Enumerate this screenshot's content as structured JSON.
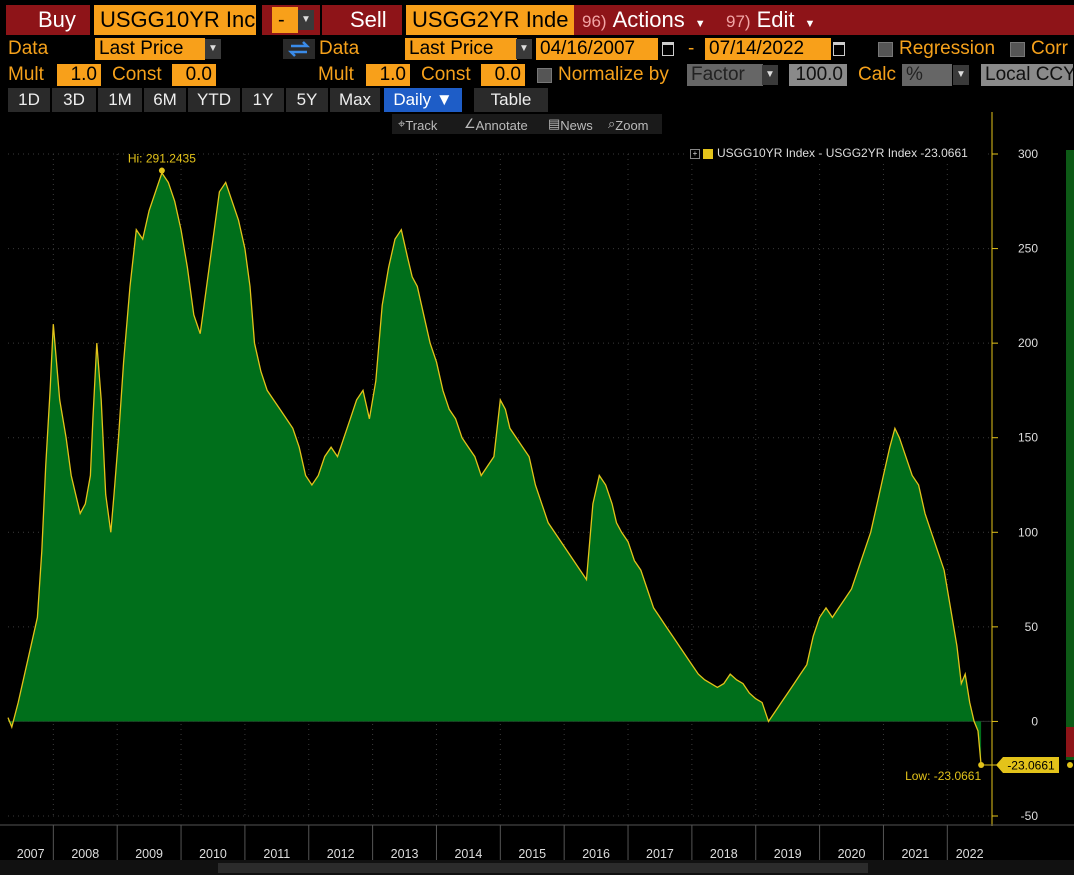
{
  "toolbar": {
    "buy_label": "Buy",
    "buy_ticker": "USGG10YR Inc",
    "op_symbol": "-",
    "sell_label": "Sell",
    "sell_ticker": "USGG2YR Inde",
    "actions_num": "96)",
    "actions_label": "Actions",
    "edit_num": "97)",
    "edit_label": "Edit"
  },
  "row2": {
    "data_label_1": "Data",
    "data_value_1": "Last Price",
    "data_label_2": "Data",
    "data_value_2": "Last Price",
    "start_date": "04/16/2007",
    "date_sep": "-",
    "end_date": "07/14/2022",
    "regression_label": "Regression",
    "corr_label": "Corr"
  },
  "row3": {
    "mult_label_1": "Mult",
    "mult_value_1": "1.0",
    "const_label_1": "Const",
    "const_value_1": "0.0",
    "mult_label_2": "Mult",
    "mult_value_2": "1.0",
    "const_label_2": "Const",
    "const_value_2": "0.0",
    "normalize_label": "Normalize by",
    "normalize_value": "Factor",
    "normalize_amount": "100.0",
    "calc_label": "Calc",
    "calc_value": "%",
    "currency_value": "Local CCY"
  },
  "tabs": [
    "1D",
    "3D",
    "1M",
    "6M",
    "YTD",
    "1Y",
    "5Y",
    "Max",
    "Daily ▼",
    "Table"
  ],
  "chart_tools": {
    "track": "Track",
    "annotate": "Annotate",
    "news": "News",
    "zoom": "Zoom"
  },
  "colors": {
    "fill": "#006f1b",
    "line": "#e3c31a",
    "accent": "#f5a11b",
    "button_red": "#8e1418"
  },
  "chart_data": {
    "type": "area",
    "legend": "USGG10YR Index - USGG2YR Index -23.0661",
    "legend_position": "top-right",
    "hi_label": "Hi: 291.2435",
    "low_label": "Low: -23.0661",
    "last_value_label": "-23.0661",
    "ylim": [
      -50,
      300
    ],
    "yticks": [
      300,
      250,
      200,
      150,
      100,
      50,
      0,
      -50
    ],
    "xlim": [
      2007.29,
      2022.7
    ],
    "xticks": [
      "2007",
      "2008",
      "2009",
      "2010",
      "2011",
      "2012",
      "2013",
      "2014",
      "2015",
      "2016",
      "2017",
      "2018",
      "2019",
      "2020",
      "2021",
      "2022"
    ],
    "x": [
      2007.29,
      2007.35,
      2007.45,
      2007.55,
      2007.65,
      2007.75,
      2007.82,
      2007.88,
      2007.95,
      2008.0,
      2008.1,
      2008.2,
      2008.28,
      2008.35,
      2008.42,
      2008.5,
      2008.58,
      2008.62,
      2008.68,
      2008.75,
      2008.82,
      2008.9,
      2008.95,
      2009.02,
      2009.1,
      2009.2,
      2009.3,
      2009.4,
      2009.5,
      2009.6,
      2009.7,
      2009.8,
      2009.9,
      2010.0,
      2010.1,
      2010.2,
      2010.3,
      2010.4,
      2010.5,
      2010.6,
      2010.7,
      2010.8,
      2010.9,
      2011.0,
      2011.08,
      2011.15,
      2011.25,
      2011.35,
      2011.45,
      2011.55,
      2011.65,
      2011.75,
      2011.85,
      2011.95,
      2012.05,
      2012.15,
      2012.25,
      2012.35,
      2012.45,
      2012.55,
      2012.65,
      2012.75,
      2012.85,
      2012.95,
      2013.05,
      2013.15,
      2013.25,
      2013.35,
      2013.45,
      2013.55,
      2013.62,
      2013.7,
      2013.8,
      2013.9,
      2014.0,
      2014.1,
      2014.2,
      2014.3,
      2014.4,
      2014.5,
      2014.6,
      2014.7,
      2014.8,
      2014.9,
      2015.0,
      2015.08,
      2015.15,
      2015.25,
      2015.35,
      2015.45,
      2015.55,
      2015.65,
      2015.75,
      2015.85,
      2015.95,
      2016.05,
      2016.15,
      2016.25,
      2016.35,
      2016.45,
      2016.55,
      2016.65,
      2016.75,
      2016.82,
      2016.9,
      2017.0,
      2017.1,
      2017.2,
      2017.3,
      2017.4,
      2017.5,
      2017.6,
      2017.7,
      2017.8,
      2017.9,
      2018.0,
      2018.1,
      2018.2,
      2018.3,
      2018.4,
      2018.5,
      2018.6,
      2018.7,
      2018.8,
      2018.9,
      2019.0,
      2019.1,
      2019.2,
      2019.3,
      2019.4,
      2019.5,
      2019.6,
      2019.7,
      2019.8,
      2019.9,
      2020.0,
      2020.1,
      2020.2,
      2020.3,
      2020.4,
      2020.5,
      2020.6,
      2020.7,
      2020.8,
      2020.9,
      2021.0,
      2021.1,
      2021.18,
      2021.25,
      2021.35,
      2021.45,
      2021.55,
      2021.65,
      2021.75,
      2021.85,
      2021.95,
      2022.05,
      2022.15,
      2022.22,
      2022.28,
      2022.35,
      2022.42,
      2022.48,
      2022.53
    ],
    "y": [
      2,
      -3,
      10,
      25,
      40,
      55,
      90,
      135,
      175,
      210,
      170,
      150,
      130,
      120,
      110,
      115,
      130,
      160,
      200,
      170,
      120,
      100,
      120,
      150,
      190,
      230,
      260,
      255,
      270,
      280,
      290,
      285,
      275,
      260,
      240,
      215,
      205,
      230,
      255,
      280,
      285,
      275,
      265,
      250,
      230,
      200,
      185,
      175,
      170,
      165,
      160,
      155,
      145,
      130,
      125,
      130,
      140,
      145,
      140,
      150,
      160,
      170,
      175,
      160,
      180,
      220,
      240,
      255,
      260,
      245,
      235,
      230,
      215,
      200,
      190,
      175,
      165,
      160,
      150,
      145,
      140,
      130,
      135,
      140,
      170,
      165,
      155,
      150,
      145,
      140,
      125,
      115,
      105,
      100,
      95,
      90,
      85,
      80,
      75,
      115,
      130,
      125,
      115,
      105,
      100,
      95,
      85,
      80,
      70,
      60,
      55,
      50,
      45,
      40,
      35,
      30,
      25,
      22,
      20,
      18,
      20,
      25,
      22,
      20,
      15,
      12,
      10,
      0,
      5,
      10,
      15,
      20,
      25,
      30,
      45,
      55,
      60,
      55,
      60,
      65,
      70,
      80,
      90,
      100,
      115,
      130,
      145,
      155,
      150,
      140,
      130,
      125,
      110,
      100,
      90,
      80,
      60,
      40,
      20,
      25,
      10,
      0,
      -5,
      -23.0661
    ]
  }
}
